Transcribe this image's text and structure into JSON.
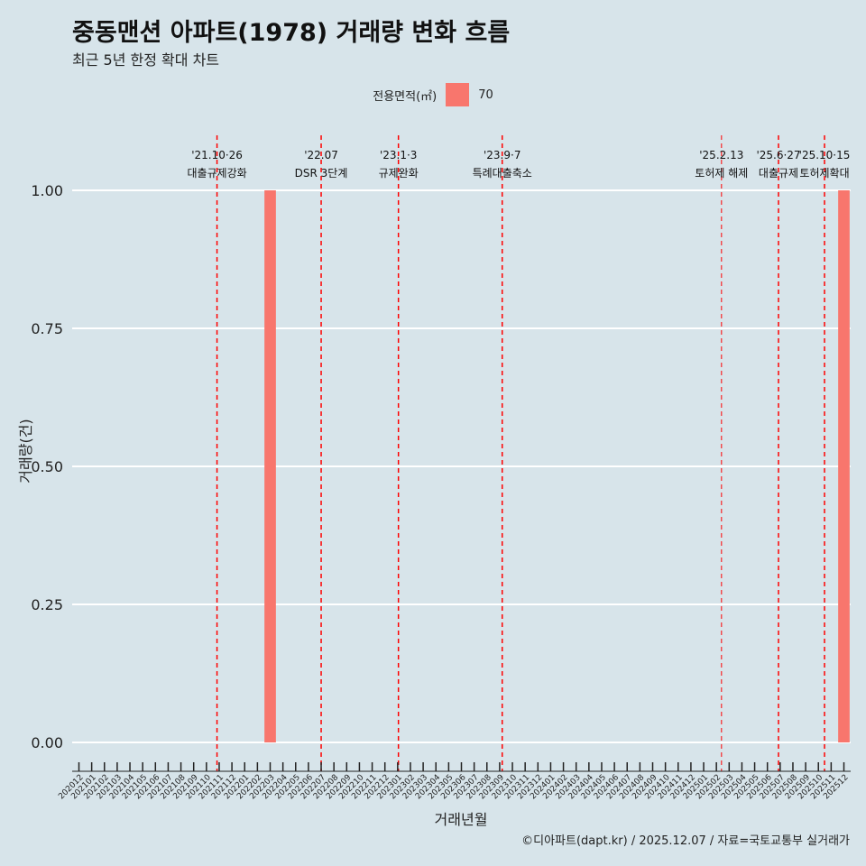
{
  "title": "중동맨션 아파트(1978) 거래량 변화 흐름",
  "subtitle": "최근 5년 한정 확대 차트",
  "caption": "©디아파트(dapt.kr) / 2025.12.07 / 자료=국토교통부 실거래가",
  "colors": {
    "background": "#d7e4ea",
    "bar": "#f8766d",
    "event_line": "#ff0000",
    "grid": "#ffffff"
  },
  "chart_data": {
    "type": "bar",
    "title": "중동맨션 아파트(1978) 거래량 변화 흐름",
    "xlabel": "거래년월",
    "ylabel": "거래량(건)",
    "ylim": [
      0,
      1
    ],
    "yticks": [
      "0.00",
      "0.25",
      "0.50",
      "0.75",
      "1.00"
    ],
    "legend": {
      "title": "전용면적(㎡)",
      "position": "top",
      "entries": [
        "70"
      ]
    },
    "categories": [
      "202012",
      "202101",
      "202102",
      "202103",
      "202104",
      "202105",
      "202106",
      "202107",
      "202108",
      "202109",
      "202110",
      "202111",
      "202112",
      "202201",
      "202202",
      "202203",
      "202204",
      "202205",
      "202206",
      "202207",
      "202208",
      "202209",
      "202210",
      "202211",
      "202212",
      "202301",
      "202302",
      "202303",
      "202304",
      "202305",
      "202306",
      "202307",
      "202308",
      "202309",
      "202310",
      "202311",
      "202312",
      "202401",
      "202402",
      "202403",
      "202404",
      "202405",
      "202406",
      "202407",
      "202408",
      "202409",
      "202410",
      "202411",
      "202412",
      "202501",
      "202502",
      "202503",
      "202504",
      "202505",
      "202506",
      "202507",
      "202508",
      "202509",
      "202510",
      "202511",
      "202512"
    ],
    "series": [
      {
        "name": "70",
        "values": [
          0,
          0,
          0,
          0,
          0,
          0,
          0,
          0,
          0,
          0,
          0,
          0,
          0,
          0,
          0,
          1,
          0,
          0,
          0,
          0,
          0,
          0,
          0,
          0,
          0,
          0,
          0,
          0,
          0,
          0,
          0,
          0,
          0,
          0,
          0,
          0,
          0,
          0,
          0,
          0,
          0,
          0,
          0,
          0,
          0,
          0,
          0,
          0,
          0,
          0,
          0,
          0,
          0,
          0,
          0,
          0,
          0,
          0,
          0,
          0,
          1
        ]
      }
    ],
    "annotations": [
      {
        "date": "'21.10·26",
        "label": "대출규제강화",
        "month": "202110",
        "offset": 0.83
      },
      {
        "date": "'22.07",
        "label": "DSR 3단계",
        "month": "202207",
        "offset": 0
      },
      {
        "date": "'23.1·3",
        "label": "규제완화",
        "month": "202301",
        "offset": 0.06
      },
      {
        "date": "'23.9·7",
        "label": "특례대출축소",
        "month": "202309",
        "offset": 0.2
      },
      {
        "date": "'25.2.13",
        "label": "토허제 해제",
        "month": "202502",
        "offset": 0.4,
        "thin": true
      },
      {
        "date": "'25.6·27",
        "label": "대출규제",
        "month": "202506",
        "offset": 0.87
      },
      {
        "date": "'25.10·15",
        "label": "토허제확대",
        "month": "202510",
        "offset": 0.48
      }
    ]
  }
}
